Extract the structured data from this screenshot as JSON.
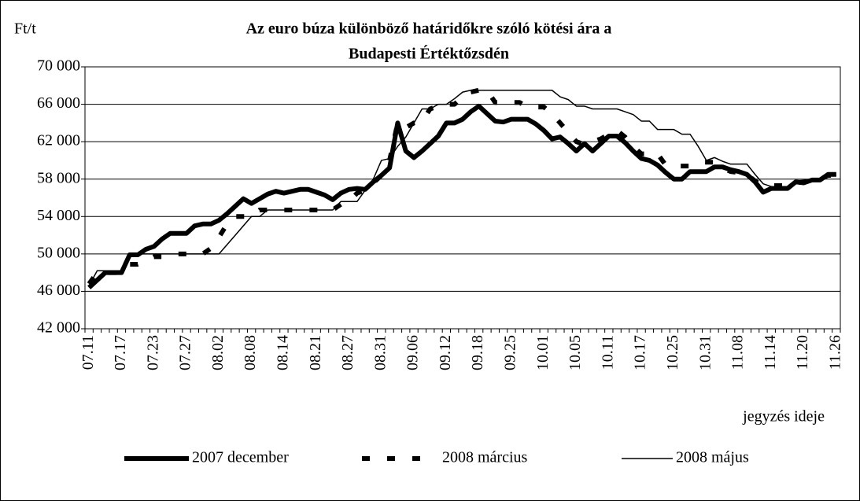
{
  "chart_data": {
    "type": "line",
    "title": [
      "Az euro búza különböző határidőkre szóló kötési ára a",
      "Budapesti Értéktőzsdén"
    ],
    "y_label": "Ft/t",
    "x_label": "jegyzés ideje",
    "categories": [
      "07.11",
      null,
      null,
      null,
      "07.17",
      null,
      null,
      null,
      "07.23",
      null,
      null,
      null,
      "07.27",
      null,
      null,
      null,
      "08.02",
      null,
      null,
      null,
      "08.08",
      null,
      null,
      null,
      "08.14",
      null,
      null,
      null,
      "08.21",
      null,
      null,
      null,
      "08.27",
      null,
      null,
      null,
      "08.31",
      null,
      null,
      null,
      "09.06",
      null,
      null,
      null,
      "09.12",
      null,
      null,
      null,
      "09.18",
      null,
      null,
      null,
      "09.25",
      null,
      null,
      null,
      "10.01",
      null,
      null,
      null,
      "10.05",
      null,
      null,
      null,
      "10.11",
      null,
      null,
      null,
      "10.17",
      null,
      null,
      null,
      "10.25",
      null,
      null,
      null,
      "10.31",
      null,
      null,
      null,
      "11.08",
      null,
      null,
      null,
      "11.14",
      null,
      null,
      null,
      "11.20",
      null,
      null,
      null,
      "11.26"
    ],
    "series": [
      {
        "name": "2007 december",
        "color": "#000000",
        "width": 6,
        "dash": null,
        "values": [
          46400,
          47200,
          48000,
          48000,
          48000,
          49900,
          49900,
          50500,
          50800,
          51600,
          52200,
          52200,
          52200,
          53000,
          53200,
          53200,
          53600,
          54300,
          55100,
          55900,
          55400,
          55900,
          56400,
          56700,
          56500,
          56700,
          56900,
          56900,
          56600,
          56300,
          55800,
          56500,
          56900,
          57000,
          56900,
          57700,
          58400,
          59200,
          64000,
          61000,
          60300,
          61000,
          61800,
          62600,
          64000,
          64000,
          64400,
          65200,
          65800,
          65000,
          64200,
          64100,
          64400,
          64400,
          64400,
          63900,
          63200,
          62300,
          62500,
          61800,
          61000,
          61800,
          61000,
          61800,
          62600,
          62600,
          61900,
          61000,
          60200,
          60000,
          59500,
          58700,
          58000,
          58000,
          58800,
          58800,
          58800,
          59300,
          59300,
          59000,
          58800,
          58500,
          57700,
          56600,
          57000,
          57000,
          57000,
          57700,
          57600,
          57900,
          57900,
          58500,
          58500
        ]
      },
      {
        "name": "2008 március",
        "color": "#000000",
        "width": 6,
        "dash": "10 22",
        "values": [
          46800,
          48000,
          48000,
          48000,
          48000,
          48900,
          48900,
          49200,
          49700,
          49700,
          49900,
          50000,
          50000,
          50000,
          50000,
          50600,
          51800,
          53200,
          54000,
          54000,
          54000,
          54700,
          54700,
          54700,
          54700,
          54700,
          54700,
          54700,
          54700,
          54700,
          54700,
          55300,
          55600,
          56500,
          56800,
          57600,
          58400,
          60000,
          64000,
          63500,
          64000,
          64200,
          65500,
          65800,
          66000,
          66000,
          66800,
          67300,
          67500,
          67500,
          66200,
          66200,
          66200,
          66200,
          65700,
          65700,
          65700,
          65000,
          64000,
          63000,
          62000,
          61700,
          62000,
          62300,
          62800,
          63200,
          62500,
          61500,
          60700,
          60700,
          60700,
          59500,
          59400,
          59400,
          59400,
          59800,
          59800,
          59800,
          59200,
          58800,
          58700,
          58500,
          57800,
          57300,
          57300,
          57300,
          57300,
          57600,
          57700,
          57900,
          58000,
          58400,
          58400
        ]
      },
      {
        "name": "2008 május",
        "color": "#000000",
        "width": 1.5,
        "dash": null,
        "values": [
          46600,
          48200,
          48200,
          48200,
          48200,
          50000,
          50000,
          50000,
          50000,
          50000,
          50000,
          50000,
          50000,
          50000,
          50000,
          50000,
          50000,
          51000,
          52000,
          53000,
          54000,
          54000,
          54700,
          54700,
          54700,
          54700,
          54700,
          54700,
          54700,
          54700,
          54700,
          55600,
          55600,
          55600,
          56800,
          58000,
          60000,
          60200,
          61500,
          62500,
          64000,
          65500,
          65500,
          66000,
          66000,
          66600,
          67300,
          67500,
          67500,
          67500,
          67500,
          67500,
          67500,
          67500,
          67500,
          67500,
          67500,
          67500,
          66800,
          66500,
          65800,
          65800,
          65500,
          65500,
          65500,
          65500,
          65200,
          64900,
          64200,
          64200,
          63300,
          63300,
          63300,
          62800,
          62800,
          61500,
          60000,
          60300,
          59900,
          59600,
          59600,
          59600,
          58500,
          57500,
          57200,
          57200,
          57200,
          57800,
          57500,
          58000,
          58000,
          58400,
          58400
        ]
      }
    ],
    "ylim": [
      42000,
      70000
    ],
    "yticks": [
      {
        "value": 42000,
        "label": "42 000"
      },
      {
        "value": 46000,
        "label": "46 000"
      },
      {
        "value": 50000,
        "label": "50 000"
      },
      {
        "value": 54000,
        "label": "54 000"
      },
      {
        "value": 58000,
        "label": "58 000"
      },
      {
        "value": 62000,
        "label": "62 000"
      },
      {
        "value": 66000,
        "label": "66 000"
      },
      {
        "value": 70000,
        "label": "70 000"
      }
    ],
    "grid": true
  }
}
